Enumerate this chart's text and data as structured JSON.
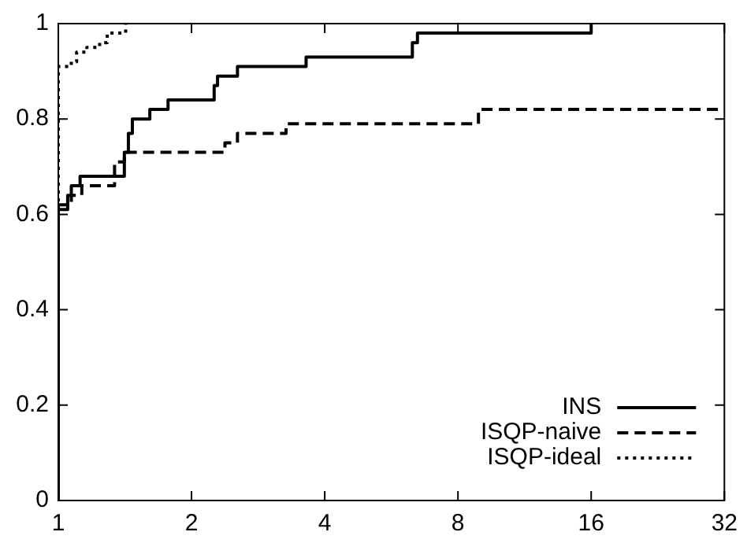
{
  "chart_data": {
    "type": "step",
    "log": "x",
    "xlim": [
      1,
      32
    ],
    "xticks": [
      1,
      2,
      4,
      8,
      16,
      32
    ],
    "ylim": [
      0,
      1
    ],
    "yticks": [
      0,
      0.2,
      0.4,
      0.6,
      0.8,
      1
    ],
    "grid": false,
    "legend": "bottom right",
    "marker": "none",
    "series": [
      {
        "name": "INS",
        "color": "#000000",
        "line_style": "solid",
        "x": [
          1,
          1,
          1.05,
          1.07,
          1.12,
          1.41,
          1.44,
          1.47,
          1.61,
          1.77,
          2.25,
          2.29,
          2.54,
          3.63,
          6.31,
          6.48,
          16
        ],
        "values": [
          0,
          0.61,
          0.64,
          0.66,
          0.68,
          0.73,
          0.77,
          0.8,
          0.82,
          0.84,
          0.87,
          0.89,
          0.91,
          0.93,
          0.96,
          0.98,
          1
        ]
      },
      {
        "name": "ISQP-naive",
        "color": "#000000",
        "line_style": "dashed",
        "x": [
          1,
          1,
          1.07,
          1.13,
          1.34,
          1.41,
          2.38,
          2.54,
          3.27,
          8.9,
          32
        ],
        "values": [
          0,
          0.62,
          0.64,
          0.66,
          0.71,
          0.73,
          0.75,
          0.77,
          0.79,
          0.82,
          0.82
        ]
      },
      {
        "name": "ISQP-ideal",
        "color": "#000000",
        "line_style": "dotted",
        "x": [
          1,
          1,
          1.07,
          1.1,
          1.16,
          1.24,
          1.29,
          1.42
        ],
        "values": [
          0,
          0.91,
          0.92,
          0.94,
          0.95,
          0.96,
          0.98,
          1
        ]
      }
    ]
  }
}
